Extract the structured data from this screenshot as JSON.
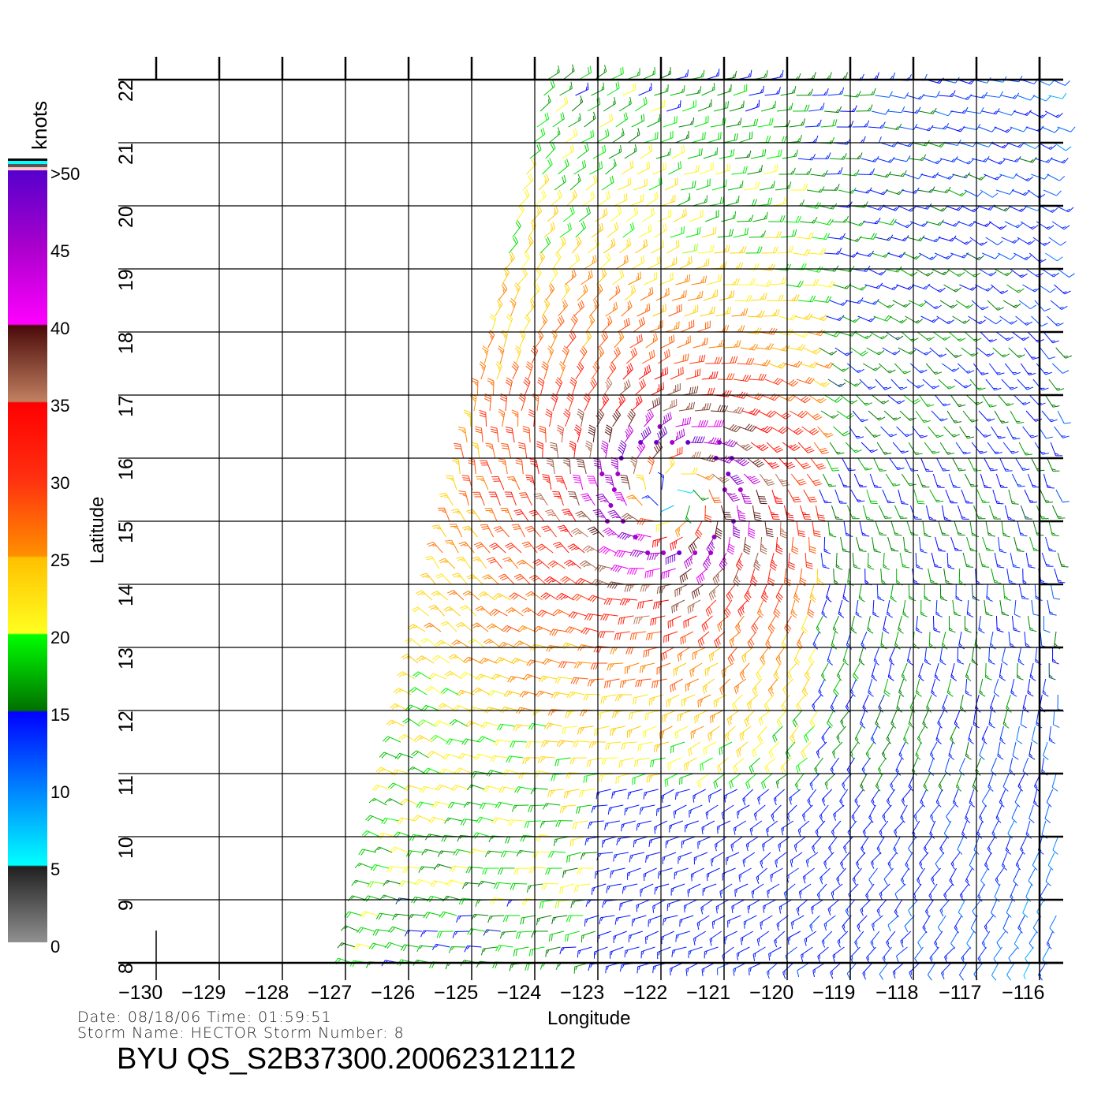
{
  "chart_data": {
    "type": "wind-barb",
    "xlabel": "Longitude",
    "ylabel": "Latitude",
    "xlim": [
      -130,
      -116
    ],
    "ylim": [
      8,
      22
    ],
    "xticks": [
      "-130",
      "-129",
      "-128",
      "-127",
      "-126",
      "-125",
      "-124",
      "-123",
      "-122",
      "-121",
      "-120",
      "-119",
      "-118",
      "-117",
      "-116"
    ],
    "yticks": [
      "8",
      "9",
      "10",
      "11",
      "12",
      "13",
      "14",
      "15",
      "16",
      "17",
      "18",
      "19",
      "20",
      "21",
      "22"
    ],
    "grid": true,
    "storm_center": {
      "lon": -121.8,
      "lat": 15.4
    },
    "peak_wind_knots": 48,
    "grid_spacing_deg": 0.25,
    "colorbar": {
      "title": "knots",
      "labels": [
        ">50",
        "45",
        "40",
        "35",
        "30",
        "25",
        "20",
        "15",
        "10",
        "5",
        "0"
      ],
      "stops": [
        {
          "v": 50,
          "c": "#5500cc"
        },
        {
          "v": 45,
          "c": "#aa00cc"
        },
        {
          "v": 40,
          "c": "#ff00ff"
        },
        {
          "v": 39.9,
          "c": "#4a0a0a"
        },
        {
          "v": 35,
          "c": "#c08060"
        },
        {
          "v": 34.9,
          "c": "#ff0000"
        },
        {
          "v": 30,
          "c": "#ff3010"
        },
        {
          "v": 25,
          "c": "#ff9000"
        },
        {
          "v": 24.9,
          "c": "#ffc000"
        },
        {
          "v": 20,
          "c": "#ffff20"
        },
        {
          "v": 19.9,
          "c": "#00ff00"
        },
        {
          "v": 15,
          "c": "#007000"
        },
        {
          "v": 14.9,
          "c": "#0000ff"
        },
        {
          "v": 10,
          "c": "#0080ff"
        },
        {
          "v": 5,
          "c": "#00ffff"
        },
        {
          "v": 4.9,
          "c": "#202020"
        },
        {
          "v": 0,
          "c": "#909090"
        }
      ]
    }
  },
  "footer": {
    "date_line": "Date: 08/18/06   Time: 01:59:51",
    "storm_line": "Storm  Name: HECTOR   Storm  Number: 8",
    "file_id": "BYU  QS_S2B37300.20062312112"
  }
}
